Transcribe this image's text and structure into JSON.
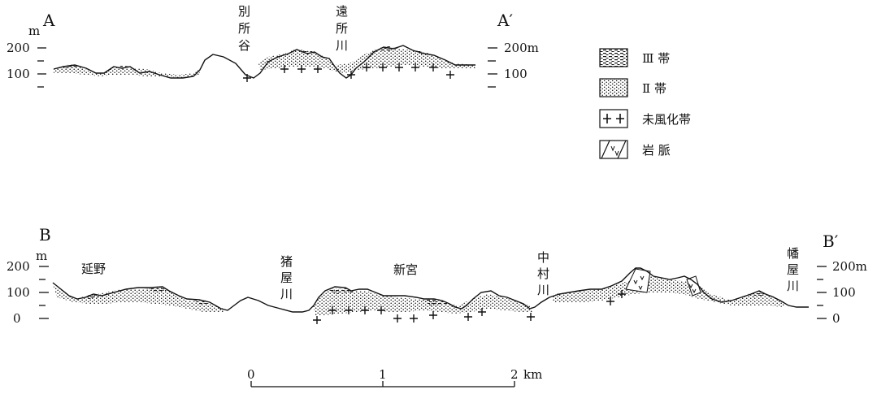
{
  "section_a": {
    "start_label": "A",
    "end_label": "A′",
    "left_axis": {
      "unit": "m",
      "top_value": "200",
      "bottom_value": "100"
    },
    "right_axis": {
      "top_label": "200m",
      "bottom_label": "100"
    },
    "places": [
      {
        "name": "別所谷",
        "chars": [
          "別",
          "所",
          "谷"
        ]
      },
      {
        "name": "遠所川",
        "chars": [
          "遠",
          "所",
          "川"
        ]
      }
    ]
  },
  "section_b": {
    "start_label": "B",
    "end_label": "B′",
    "left_axis": {
      "unit": "m",
      "top_value": "200",
      "mid_value": "100",
      "bottom_value": "0"
    },
    "right_axis": {
      "top_label": "200m",
      "mid_label": "100",
      "bottom_label": "0"
    },
    "places_horizontal": [
      {
        "name": "延野"
      },
      {
        "name": "新宮"
      }
    ],
    "places_vertical": [
      {
        "name": "猪屋川",
        "chars": [
          "猪",
          "屋",
          "川"
        ]
      },
      {
        "name": "中村川",
        "chars": [
          "中",
          "村",
          "川"
        ]
      },
      {
        "name": "幡屋川",
        "chars": [
          "幡",
          "屋",
          "川"
        ]
      }
    ]
  },
  "legend": {
    "items": [
      {
        "label": "Ⅲ 帯",
        "pattern": "dashes"
      },
      {
        "label": "Ⅱ 帯",
        "pattern": "dots"
      },
      {
        "label": "未風化帯",
        "pattern": "crosses"
      },
      {
        "label": "岩 脈",
        "pattern": "dike"
      }
    ]
  },
  "scale_bar": {
    "labels": [
      "0",
      "1",
      "2"
    ],
    "unit": "km"
  }
}
